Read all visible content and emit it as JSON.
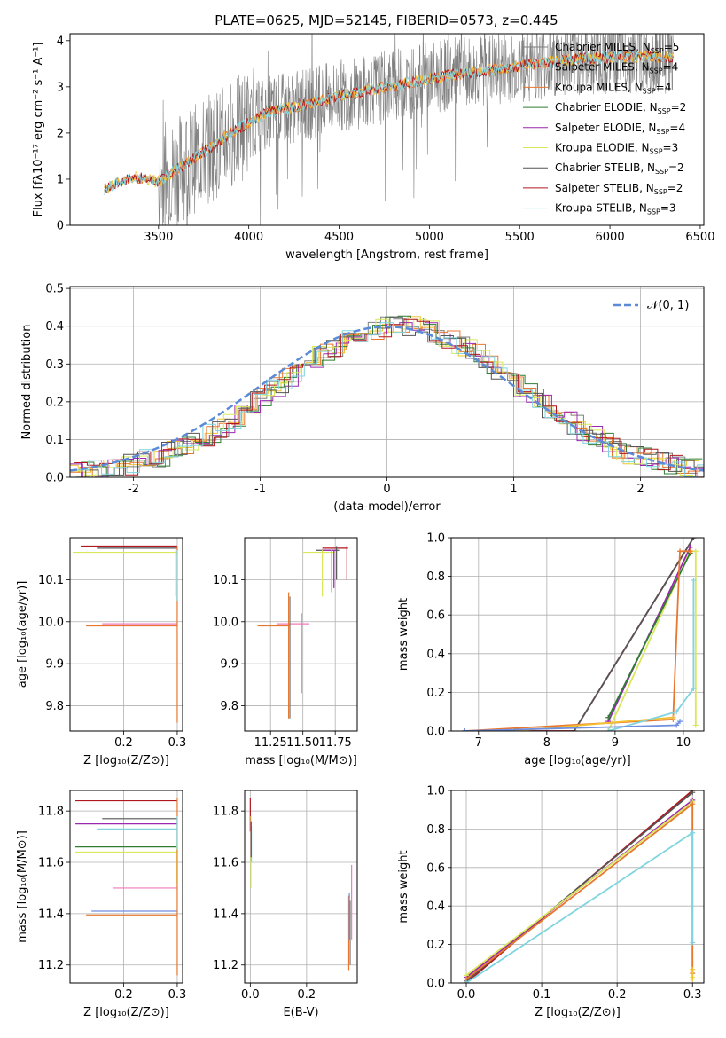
{
  "figure": {
    "title": "PLATE=0625, MJD=52145, FIBERID=0573, z=0.445"
  },
  "colors": {
    "chabrier_miles": "#808080",
    "salpeter_miles": "#f2c030",
    "kroupa_miles": "#e8772e",
    "chabrier_elodie": "#2e7d32",
    "salpeter_elodie": "#9c27b0",
    "kroupa_elodie": "#d9e85a",
    "chabrier_stelib": "#555555",
    "salpeter_stelib": "#b0171f",
    "kroupa_stelib": "#7fd4e0",
    "blue_extra": "#6f8fe0",
    "pink_extra": "#f07ab8",
    "normal_curve": "#5b8bd6"
  },
  "chart_data": [
    {
      "id": "spectrum",
      "type": "line",
      "title": "PLATE=0625, MJD=52145, FIBERID=0573, z=0.445",
      "xlabel": "wavelength [Angstrom, rest frame]",
      "ylabel": "Flux [fλ10⁻¹⁷ erg cm⁻² s⁻¹ A⁻¹]",
      "xlim": [
        3010,
        6520
      ],
      "ylim": [
        0,
        4.15
      ],
      "xticks": [
        3500,
        4000,
        4500,
        5000,
        5500,
        6000,
        6500
      ],
      "yticks": [
        0,
        1,
        2,
        3,
        4
      ],
      "grid": false,
      "legend_position": "top-right",
      "spectrum_range": [
        3200,
        6350
      ],
      "continuum_points": [
        [
          3200,
          0.78
        ],
        [
          3350,
          1.05
        ],
        [
          3500,
          0.95
        ],
        [
          3700,
          1.45
        ],
        [
          3900,
          2.0
        ],
        [
          4100,
          2.45
        ],
        [
          4300,
          2.6
        ],
        [
          4500,
          2.8
        ],
        [
          4700,
          2.95
        ],
        [
          4900,
          3.1
        ],
        [
          5100,
          3.25
        ],
        [
          5300,
          3.35
        ],
        [
          5500,
          3.45
        ],
        [
          5800,
          3.6
        ],
        [
          6100,
          3.65
        ],
        [
          6350,
          3.65
        ]
      ],
      "legend": [
        {
          "label": "Chabrier MILES, N",
          "sub": "SSP",
          "value": "=5",
          "color_key": "chabrier_miles"
        },
        {
          "label": "Salpeter MILES, N",
          "sub": "SSP",
          "value": "=4",
          "color_key": "salpeter_miles"
        },
        {
          "label": "Kroupa MILES, N",
          "sub": "SSP",
          "value": "=4",
          "color_key": "kroupa_miles"
        },
        {
          "label": "Chabrier ELODIE, N",
          "sub": "SSP",
          "value": "=2",
          "color_key": "chabrier_elodie"
        },
        {
          "label": "Salpeter ELODIE, N",
          "sub": "SSP",
          "value": "=4",
          "color_key": "salpeter_elodie"
        },
        {
          "label": "Kroupa ELODIE, N",
          "sub": "SSP",
          "value": "=3",
          "color_key": "kroupa_elodie"
        },
        {
          "label": "Chabrier STELIB, N",
          "sub": "SSP",
          "value": "=2",
          "color_key": "chabrier_stelib"
        },
        {
          "label": "Salpeter STELIB, N",
          "sub": "SSP",
          "value": "=2",
          "color_key": "salpeter_stelib"
        },
        {
          "label": "Kroupa STELIB, N",
          "sub": "SSP",
          "value": "=3",
          "color_key": "kroupa_stelib"
        }
      ]
    },
    {
      "id": "residuals",
      "type": "line",
      "xlabel": "(data-model)/error",
      "ylabel": "Normed distribution",
      "xlim": [
        -2.5,
        2.5
      ],
      "ylim": [
        0,
        0.505
      ],
      "xticks": [
        -2,
        -1,
        0,
        1,
        2
      ],
      "yticks": [
        0.0,
        0.1,
        0.2,
        0.3,
        0.4,
        0.5
      ],
      "grid": true,
      "legend_position": "top-right",
      "legend_label": "𝒩(0, 1)",
      "bin_width": 0.1,
      "base_histogram": [
        0.01,
        0.015,
        0.02,
        0.03,
        0.035,
        0.045,
        0.06,
        0.07,
        0.075,
        0.07,
        0.08,
        0.09,
        0.1,
        0.11,
        0.12,
        0.13,
        0.145,
        0.16,
        0.18,
        0.2,
        0.21,
        0.235,
        0.25,
        0.27,
        0.3,
        0.32,
        0.34,
        0.36,
        0.37,
        0.4,
        0.43,
        0.45,
        0.44,
        0.42,
        0.4,
        0.39,
        0.4,
        0.42,
        0.44,
        0.43,
        0.42,
        0.4,
        0.38,
        0.36,
        0.35,
        0.34,
        0.3,
        0.28,
        0.27,
        0.25,
        0.24,
        0.22,
        0.2,
        0.19,
        0.17,
        0.16,
        0.15,
        0.14,
        0.12,
        0.11,
        0.1,
        0.09,
        0.08,
        0.075,
        0.07,
        0.06,
        0.055,
        0.05,
        0.045,
        0.04,
        0.035,
        0.03,
        0.025,
        0.022,
        0.02,
        0.018,
        0.016,
        0.014,
        0.012,
        0.011,
        0.01,
        0.01,
        0.01,
        0.01,
        0.01,
        0.01,
        0.01,
        0.01,
        0.01,
        0.01,
        0.01,
        0.01,
        0.01,
        0.01,
        0.01,
        0.01,
        0.01,
        0.01,
        0.01,
        0.01
      ]
    },
    {
      "id": "age-vs-z",
      "type": "scatter",
      "xlabel": "Z [log₁₀(Z/Z⊙)]",
      "ylabel": "age  [log₁₀(age/yr)]",
      "xlim": [
        0.1,
        0.31
      ],
      "ylim": [
        9.74,
        10.2
      ],
      "xticks": [
        0.2,
        0.3
      ],
      "yticks": [
        9.8,
        9.9,
        10.0,
        10.1
      ],
      "grid": true,
      "points": [
        {
          "x0": 0.12,
          "x1": 0.3,
          "y": 10.18,
          "color_key": "salpeter_stelib"
        },
        {
          "x0": 0.15,
          "x1": 0.3,
          "y": 10.175,
          "color_key": "chabrier_stelib"
        },
        {
          "x0": 0.105,
          "x1": 0.3,
          "y": 10.165,
          "color_key": "kroupa_elodie"
        },
        {
          "x0": 0.13,
          "x1": 0.3,
          "y": 9.99,
          "color_key": "kroupa_miles"
        },
        {
          "x0": 0.16,
          "x1": 0.3,
          "y": 9.995,
          "color_key": "pink_extra"
        }
      ],
      "verticals": [
        {
          "x": 0.3,
          "y0": 9.76,
          "y1": 10.18,
          "color_key": "kroupa_miles"
        },
        {
          "x": 0.297,
          "y0": 10.06,
          "y1": 10.17,
          "color_key": "kroupa_elodie"
        },
        {
          "x": 0.3,
          "y0": 10.05,
          "y1": 10.17,
          "color_key": "kroupa_stelib"
        }
      ]
    },
    {
      "id": "age-vs-mass",
      "type": "scatter",
      "xlabel": "mass [log₁₀(M/M⊙)]",
      "ylabel": "",
      "xlim": [
        11.05,
        11.92
      ],
      "ylim": [
        9.74,
        10.2
      ],
      "xticks": [
        11.25,
        11.5,
        11.75
      ],
      "yticks": [
        9.8,
        9.9,
        10.0,
        10.1
      ],
      "grid": true,
      "points": [
        {
          "x0": 11.65,
          "x1": 11.85,
          "y": 10.175,
          "color_key": "salpeter_stelib"
        },
        {
          "x0": 11.6,
          "x1": 11.78,
          "y": 10.17,
          "color_key": "chabrier_stelib"
        },
        {
          "x0": 11.5,
          "x1": 11.75,
          "y": 10.165,
          "color_key": "kroupa_elodie"
        },
        {
          "x0": 11.65,
          "x1": 11.75,
          "y": 10.17,
          "color_key": "salpeter_elodie"
        },
        {
          "x0": 11.15,
          "x1": 11.4,
          "y": 9.99,
          "color_key": "kroupa_miles"
        },
        {
          "x0": 11.3,
          "x1": 11.55,
          "y": 9.995,
          "color_key": "pink_extra"
        }
      ],
      "verticals": [
        {
          "x": 11.84,
          "y0": 10.1,
          "y1": 10.18,
          "color_key": "salpeter_stelib"
        },
        {
          "x": 11.76,
          "y0": 10.1,
          "y1": 10.18,
          "color_key": "chabrier_stelib"
        },
        {
          "x": 11.74,
          "y0": 10.08,
          "y1": 10.17,
          "color_key": "salpeter_elodie"
        },
        {
          "x": 11.72,
          "y0": 10.07,
          "y1": 10.17,
          "color_key": "kroupa_stelib"
        },
        {
          "x": 11.65,
          "y0": 10.06,
          "y1": 10.17,
          "color_key": "kroupa_elodie"
        },
        {
          "x": 11.39,
          "y0": 9.77,
          "y1": 10.07,
          "color_key": "kroupa_miles"
        },
        {
          "x": 11.4,
          "y0": 9.77,
          "y1": 10.06,
          "color_key": "chabrier_miles"
        },
        {
          "x": 11.49,
          "y0": 9.83,
          "y1": 10.02,
          "color_key": "pink_extra"
        }
      ]
    },
    {
      "id": "massweight-vs-age",
      "type": "line",
      "xlabel": "age  [log₁₀(age/yr)]",
      "ylabel": "mass weight",
      "xlim": [
        6.6,
        10.3
      ],
      "ylim": [
        0,
        1.0
      ],
      "xticks": [
        7,
        8,
        9,
        10
      ],
      "yticks": [
        0.0,
        0.2,
        0.4,
        0.6,
        0.8,
        1.0
      ],
      "grid": true,
      "series": [
        {
          "color_key": "salpeter_stelib",
          "x": [
            6.8,
            8.4,
            10.15
          ],
          "y": [
            0.0,
            0.0,
            1.0
          ]
        },
        {
          "color_key": "chabrier_stelib",
          "x": [
            8.4,
            10.15
          ],
          "y": [
            0.0,
            1.0
          ]
        },
        {
          "color_key": "kroupa_elodie",
          "x": [
            8.9,
            10.1,
            10.18,
            10.18
          ],
          "y": [
            0.0,
            0.93,
            0.93,
            0.03
          ]
        },
        {
          "color_key": "salpeter_elodie",
          "x": [
            8.9,
            10.1
          ],
          "y": [
            0.05,
            0.95
          ]
        },
        {
          "color_key": "chabrier_elodie",
          "x": [
            8.9,
            10.1
          ],
          "y": [
            0.07,
            0.92
          ]
        },
        {
          "color_key": "kroupa_miles",
          "x": [
            6.8,
            9.85,
            9.95,
            10.1
          ],
          "y": [
            0.0,
            0.06,
            0.93,
            0.93
          ]
        },
        {
          "color_key": "salpeter_miles",
          "x": [
            7.5,
            9.85
          ],
          "y": [
            0.0,
            0.07
          ]
        },
        {
          "color_key": "kroupa_stelib",
          "x": [
            8.9,
            9.9,
            10.15,
            10.15
          ],
          "y": [
            0.0,
            0.1,
            0.22,
            0.78
          ]
        },
        {
          "color_key": "blue_extra",
          "x": [
            6.8,
            9.9,
            9.95
          ],
          "y": [
            0.0,
            0.03,
            0.05
          ]
        }
      ]
    },
    {
      "id": "mass-vs-z",
      "type": "scatter",
      "xlabel": "Z [log₁₀(Z/Z⊙)]",
      "ylabel": "mass [log₁₀(M/M⊙)]",
      "xlim": [
        0.1,
        0.31
      ],
      "ylim": [
        11.13,
        11.88
      ],
      "xticks": [
        0.2,
        0.3
      ],
      "yticks": [
        11.2,
        11.4,
        11.6,
        11.8
      ],
      "grid": true,
      "points": [
        {
          "x0": 0.11,
          "x1": 0.3,
          "y": 11.84,
          "color_key": "salpeter_stelib"
        },
        {
          "x0": 0.16,
          "x1": 0.3,
          "y": 11.77,
          "color_key": "chabrier_stelib"
        },
        {
          "x0": 0.11,
          "x1": 0.3,
          "y": 11.75,
          "color_key": "salpeter_elodie"
        },
        {
          "x0": 0.15,
          "x1": 0.3,
          "y": 11.73,
          "color_key": "kroupa_stelib"
        },
        {
          "x0": 0.11,
          "x1": 0.3,
          "y": 11.66,
          "color_key": "chabrier_elodie"
        },
        {
          "x0": 0.11,
          "x1": 0.3,
          "y": 11.64,
          "color_key": "kroupa_elodie"
        },
        {
          "x0": 0.18,
          "x1": 0.3,
          "y": 11.5,
          "color_key": "pink_extra"
        },
        {
          "x0": 0.14,
          "x1": 0.3,
          "y": 11.41,
          "color_key": "blue_extra"
        },
        {
          "x0": 0.13,
          "x1": 0.3,
          "y": 11.395,
          "color_key": "kroupa_miles"
        }
      ],
      "verticals": [
        {
          "x": 0.3,
          "y0": 11.16,
          "y1": 11.85,
          "color_key": "kroupa_miles"
        },
        {
          "x": 0.298,
          "y0": 11.52,
          "y1": 11.68,
          "color_key": "kroupa_elodie"
        },
        {
          "x": 0.3,
          "y0": 11.65,
          "y1": 11.78,
          "color_key": "kroupa_stelib"
        }
      ]
    },
    {
      "id": "mass-vs-ebv",
      "type": "scatter",
      "xlabel": "E(B-V)",
      "ylabel": "",
      "xlim": [
        -0.02,
        0.38
      ],
      "ylim": [
        11.13,
        11.88
      ],
      "xticks": [
        0.0,
        0.2
      ],
      "yticks": [
        11.2,
        11.4,
        11.6,
        11.8
      ],
      "grid": true,
      "verticals": [
        {
          "x": 0.0,
          "y0": 11.72,
          "y1": 11.85,
          "color_key": "salpeter_stelib"
        },
        {
          "x": 0.002,
          "y0": 11.5,
          "y1": 11.78,
          "color_key": "kroupa_elodie"
        },
        {
          "x": 0.004,
          "y0": 11.6,
          "y1": 11.74,
          "color_key": "kroupa_stelib"
        },
        {
          "x": 0.003,
          "y0": 11.62,
          "y1": 11.76,
          "color_key": "salpeter_elodie"
        },
        {
          "x": 0.35,
          "y0": 11.18,
          "y1": 11.47,
          "color_key": "kroupa_miles"
        },
        {
          "x": 0.355,
          "y0": 11.2,
          "y1": 11.45,
          "color_key": "chabrier_miles"
        },
        {
          "x": 0.36,
          "y0": 11.3,
          "y1": 11.59,
          "color_key": "pink_extra"
        },
        {
          "x": 0.352,
          "y0": 11.3,
          "y1": 11.48,
          "color_key": "blue_extra"
        }
      ]
    },
    {
      "id": "massweight-vs-z",
      "type": "line",
      "xlabel": "Z [log₁₀(Z/Z⊙)]",
      "ylabel": "mass weight",
      "xlim": [
        -0.02,
        0.315
      ],
      "ylim": [
        0,
        1.0
      ],
      "xticks": [
        0.0,
        0.1,
        0.2,
        0.3
      ],
      "yticks": [
        0.0,
        0.2,
        0.4,
        0.6,
        0.8,
        1.0
      ],
      "grid": true,
      "series": [
        {
          "color_key": "salpeter_stelib",
          "x": [
            0.0,
            0.3
          ],
          "y": [
            0.0,
            1.0
          ]
        },
        {
          "color_key": "chabrier_stelib",
          "x": [
            0.0,
            0.3
          ],
          "y": [
            0.01,
            0.99
          ]
        },
        {
          "color_key": "salpeter_elodie",
          "x": [
            0.0,
            0.3
          ],
          "y": [
            0.03,
            0.95
          ]
        },
        {
          "color_key": "kroupa_elodie",
          "x": [
            0.0,
            0.3,
            0.3
          ],
          "y": [
            0.04,
            0.94,
            0.03
          ]
        },
        {
          "color_key": "kroupa_miles",
          "x": [
            0.0,
            0.3,
            0.3
          ],
          "y": [
            0.02,
            0.93,
            0.05
          ]
        },
        {
          "color_key": "kroupa_stelib",
          "x": [
            0.0,
            0.3,
            0.3
          ],
          "y": [
            0.0,
            0.78,
            0.21
          ]
        },
        {
          "color_key": "salpeter_miles",
          "x": [
            0.3,
            0.3
          ],
          "y": [
            0.02,
            0.07
          ]
        }
      ]
    }
  ]
}
